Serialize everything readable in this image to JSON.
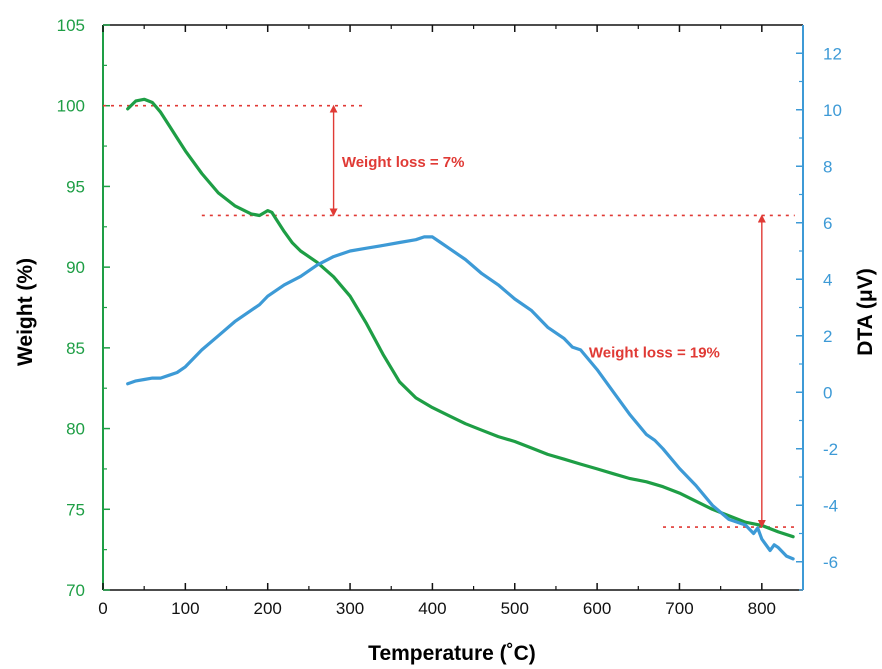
{
  "colors": {
    "weight": "#1e9e45",
    "dta": "#3d9ad6",
    "annotation": "#e03a35",
    "axis": "#111111"
  },
  "chart_data": {
    "type": "line",
    "title": "",
    "xlabel": "Temperature (˚C)",
    "ylabel_left": "Weight (%)",
    "ylabel_right": "DTA (μV)",
    "xlim": [
      0,
      850
    ],
    "ylim_left": [
      70,
      105
    ],
    "ylim_right": [
      -7,
      13
    ],
    "x_ticks": [
      0,
      100,
      200,
      300,
      400,
      500,
      600,
      700,
      800
    ],
    "y_left_ticks": [
      70,
      75,
      80,
      85,
      90,
      95,
      100,
      105
    ],
    "y_right_ticks": [
      -6,
      -4,
      -2,
      0,
      2,
      4,
      6,
      8,
      10,
      12
    ],
    "grid": false,
    "legend": "none",
    "series": [
      {
        "axis": "left",
        "color": "#1e9e45",
        "x": [
          30,
          40,
          50,
          60,
          70,
          80,
          90,
          100,
          120,
          140,
          160,
          180,
          190,
          200,
          205,
          210,
          220,
          230,
          240,
          260,
          280,
          300,
          320,
          340,
          360,
          380,
          400,
          420,
          440,
          460,
          480,
          500,
          520,
          540,
          560,
          580,
          600,
          620,
          640,
          660,
          680,
          700,
          720,
          740,
          760,
          780,
          800,
          820,
          838
        ],
        "y": [
          99.8,
          100.3,
          100.4,
          100.2,
          99.6,
          98.8,
          98.0,
          97.2,
          95.8,
          94.6,
          93.8,
          93.3,
          93.2,
          93.5,
          93.4,
          93.0,
          92.2,
          91.5,
          91.0,
          90.3,
          89.4,
          88.2,
          86.5,
          84.6,
          82.9,
          81.9,
          81.3,
          80.8,
          80.3,
          79.9,
          79.5,
          79.2,
          78.8,
          78.4,
          78.1,
          77.8,
          77.5,
          77.2,
          76.9,
          76.7,
          76.4,
          76.0,
          75.5,
          75.0,
          74.6,
          74.2,
          74.0,
          73.6,
          73.3
        ]
      },
      {
        "axis": "right",
        "color": "#3d9ad6",
        "x": [
          30,
          40,
          50,
          60,
          70,
          80,
          90,
          100,
          120,
          140,
          160,
          180,
          190,
          200,
          220,
          240,
          260,
          280,
          300,
          320,
          340,
          360,
          380,
          390,
          400,
          410,
          420,
          440,
          460,
          480,
          500,
          520,
          540,
          560,
          570,
          580,
          600,
          620,
          640,
          660,
          670,
          680,
          700,
          720,
          740,
          760,
          780,
          790,
          795,
          800,
          810,
          815,
          820,
          830,
          838
        ],
        "y": [
          0.3,
          0.4,
          0.45,
          0.5,
          0.5,
          0.6,
          0.7,
          0.9,
          1.5,
          2.0,
          2.5,
          2.9,
          3.1,
          3.4,
          3.8,
          4.1,
          4.5,
          4.8,
          5.0,
          5.1,
          5.2,
          5.3,
          5.4,
          5.5,
          5.5,
          5.3,
          5.1,
          4.7,
          4.2,
          3.8,
          3.3,
          2.9,
          2.3,
          1.9,
          1.6,
          1.5,
          0.8,
          0.0,
          -0.8,
          -1.5,
          -1.7,
          -2.0,
          -2.7,
          -3.3,
          -4.0,
          -4.5,
          -4.7,
          -5.0,
          -4.8,
          -5.2,
          -5.6,
          -5.4,
          -5.5,
          -5.8,
          -5.9
        ]
      }
    ],
    "annotations": [
      {
        "text": "Weight loss = 7%",
        "top_weight": 100,
        "bottom_weight": 93.2,
        "arrow_x": 280,
        "text_x": 290,
        "text_weight": 96.5,
        "ref_line_1": [
          0,
          320
        ],
        "ref_line_2": [
          120,
          840
        ]
      },
      {
        "text": "Weight loss = 19%",
        "top_weight": 93.2,
        "bottom_weight": 73.9,
        "arrow_x": 800,
        "text_x": 590,
        "text_weight": 84.7,
        "ref_line_3": [
          680,
          840
        ]
      }
    ]
  }
}
